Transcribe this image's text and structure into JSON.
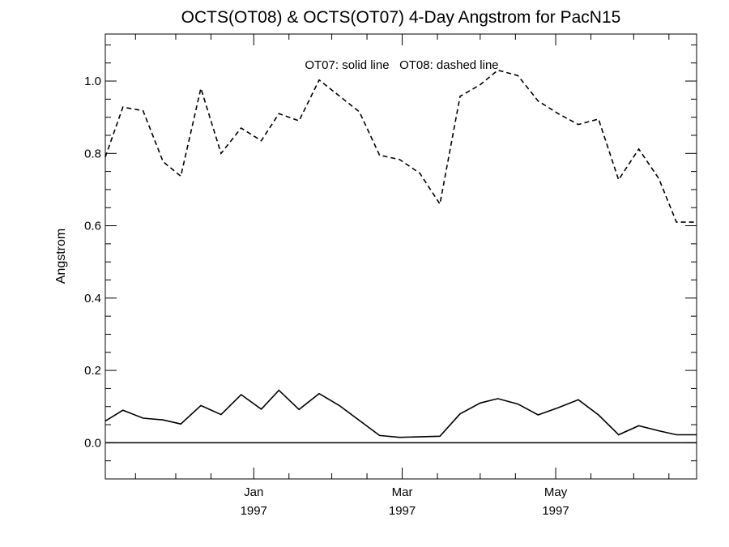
{
  "chart_data": {
    "type": "line",
    "title": "OCTS(OT08) & OCTS(OT07) 4-Day Angstrom for PacN15",
    "annotation": "OT07: solid line   OT08: dashed line",
    "ylabel": "Angstrom",
    "xlabel": "",
    "ylim": [
      -0.1,
      1.13
    ],
    "xlim": [
      "1996-11-03",
      "1997-06-26"
    ],
    "y_ticks": [
      "0.0",
      "0.2",
      "0.4",
      "0.6",
      "0.8",
      "1.0"
    ],
    "x_ticks": [
      {
        "date": "1997-01-01",
        "label": "Jan",
        "sublabel": "1997"
      },
      {
        "date": "1997-03-01",
        "label": "Mar",
        "sublabel": "1997"
      },
      {
        "date": "1997-05-01",
        "label": "May",
        "sublabel": "1997"
      }
    ],
    "zero_line": true,
    "series": [
      {
        "name": "OT07",
        "style": "solid",
        "x": [
          "1996-11-03",
          "1996-11-10",
          "1996-11-18",
          "1996-11-26",
          "1996-12-03",
          "1996-12-11",
          "1996-12-19",
          "1996-12-27",
          "1997-01-04",
          "1997-01-11",
          "1997-01-19",
          "1997-01-27",
          "1997-02-04",
          "1997-02-20",
          "1997-02-28",
          "1997-03-16",
          "1997-03-24",
          "1997-04-01",
          "1997-04-08",
          "1997-04-16",
          "1997-04-24",
          "1997-05-02",
          "1997-05-10",
          "1997-05-18",
          "1997-05-26",
          "1997-06-03",
          "1997-06-11",
          "1997-06-18",
          "1997-06-26"
        ],
        "y": [
          0.06,
          0.09,
          0.068,
          0.063,
          0.052,
          0.103,
          0.078,
          0.133,
          0.093,
          0.145,
          0.092,
          0.136,
          0.103,
          0.02,
          0.015,
          0.018,
          0.08,
          0.11,
          0.122,
          0.107,
          0.077,
          0.097,
          0.119,
          0.077,
          0.022,
          0.047,
          0.033,
          0.022,
          0.022
        ]
      },
      {
        "name": "OT08",
        "style": "dashed",
        "x": [
          "1996-11-03",
          "1996-11-10",
          "1996-11-18",
          "1996-11-26",
          "1996-12-03",
          "1996-12-11",
          "1996-12-19",
          "1996-12-27",
          "1997-01-04",
          "1997-01-11",
          "1997-01-19",
          "1997-01-27",
          "1997-02-12",
          "1997-02-20",
          "1997-02-28",
          "1997-03-08",
          "1997-03-16",
          "1997-03-24",
          "1997-04-01",
          "1997-04-08",
          "1997-04-16",
          "1997-04-24",
          "1997-05-02",
          "1997-05-10",
          "1997-05-18",
          "1997-05-26",
          "1997-06-03",
          "1997-06-11",
          "1997-06-18",
          "1997-06-26"
        ],
        "y": [
          0.79,
          0.928,
          0.918,
          0.777,
          0.737,
          0.98,
          0.8,
          0.87,
          0.835,
          0.91,
          0.89,
          1.003,
          0.915,
          0.795,
          0.783,
          0.745,
          0.66,
          0.958,
          0.99,
          1.03,
          1.015,
          0.945,
          0.91,
          0.88,
          0.895,
          0.727,
          0.812,
          0.73,
          0.61,
          0.61
        ]
      }
    ]
  }
}
